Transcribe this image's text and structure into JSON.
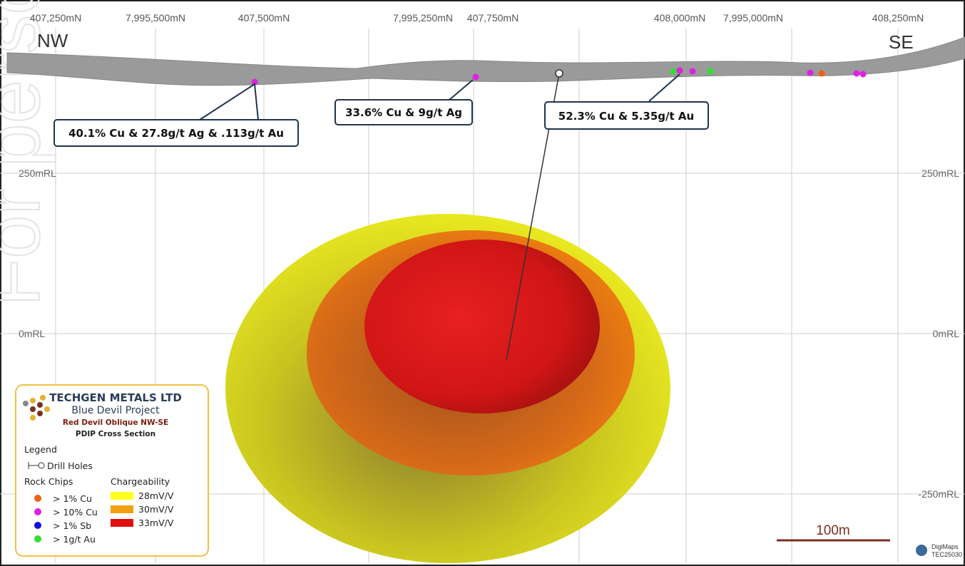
{
  "header": {
    "left": "NW",
    "right": "SE"
  },
  "northings": [
    "407,250mN",
    "7,995,500mN",
    "407,500mN",
    "7,995,250mN",
    "407,750mN",
    "408,000mN",
    "7,995,000mN",
    "408,250mN"
  ],
  "levels": {
    "left": [
      "250mRL",
      "0mRL"
    ],
    "right": [
      "250mRL",
      "0mRL",
      "-250mRL"
    ]
  },
  "callouts": [
    "40.1% Cu & 27.8g/t Ag & .113g/t Au",
    "33.6% Cu & 9g/t Ag",
    "52.3% Cu & 5.35g/t Au"
  ],
  "legend": {
    "company": "TECHGEN METALS LTD",
    "project": "Blue Devil Project",
    "section": "Red Devil Oblique NW-SE",
    "subtitle": "PDIP Cross Section",
    "heading": "Legend",
    "drill_holes": "Drill Holes",
    "rock_chips": {
      "title": "Rock Chips",
      "items": [
        "> 1% Cu",
        "> 10% Cu",
        "> 1% Sb",
        "> 1g/t Au"
      ]
    },
    "chargeability": {
      "title": "Chargeability",
      "items": [
        "28mV/V",
        "30mV/V",
        "33mV/V"
      ]
    }
  },
  "scale": "100m",
  "watermark": "For personal use only",
  "credit": {
    "brand": "DigiMaps",
    "code": "TEC25030"
  }
}
